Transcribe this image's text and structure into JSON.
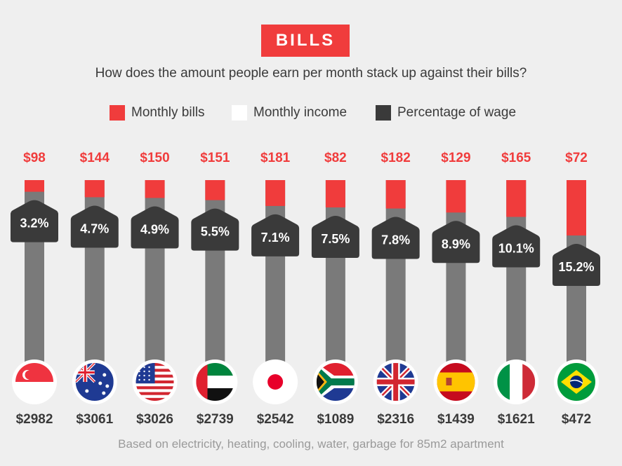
{
  "header": {
    "title": "BILLS",
    "subtitle": "How does the amount people earn per month stack up against their bills?"
  },
  "legend": [
    {
      "label": "Monthly bills",
      "color": "#f03c3c"
    },
    {
      "label": "Monthly income",
      "color": "#ffffff"
    },
    {
      "label": "Percentage of wage",
      "color": "#3a3a3a"
    }
  ],
  "footnote": "Based on electricity, heating, cooling, water, garbage for 85m2 apartment",
  "colors": {
    "bills": "#f03c3c",
    "bar": "#7a7a7a",
    "badge": "#3a3a3a",
    "background": "#efefef"
  },
  "chart_data": {
    "type": "bar",
    "categories": [
      "Singapore",
      "Australia",
      "United States",
      "United Arab Emirates",
      "Japan",
      "South Africa",
      "United Kingdom",
      "Spain",
      "Italy",
      "Brazil"
    ],
    "flags": [
      "singapore-flag-icon",
      "australia-flag-icon",
      "usa-flag-icon",
      "uae-flag-icon",
      "japan-flag-icon",
      "south-africa-flag-icon",
      "uk-flag-icon",
      "spain-flag-icon",
      "italy-flag-icon",
      "brazil-flag-icon"
    ],
    "series": [
      {
        "name": "Monthly bills",
        "labels": [
          "$98",
          "$144",
          "$150",
          "$151",
          "$181",
          "$82",
          "$182",
          "$129",
          "$165",
          "$72"
        ]
      },
      {
        "name": "Monthly income",
        "labels": [
          "$2982",
          "$3061",
          "$3026",
          "$2739",
          "$2542",
          "$1089",
          "$2316",
          "$1439",
          "$1621",
          "$472"
        ]
      },
      {
        "name": "Percentage of wage",
        "values": [
          3.2,
          4.7,
          4.9,
          5.5,
          7.1,
          7.5,
          7.8,
          8.9,
          10.1,
          15.2
        ],
        "labels": [
          "3.2%",
          "4.7%",
          "4.9%",
          "5.5%",
          "7.1%",
          "7.5%",
          "7.8%",
          "8.9%",
          "10.1%",
          "15.2%"
        ]
      }
    ]
  }
}
